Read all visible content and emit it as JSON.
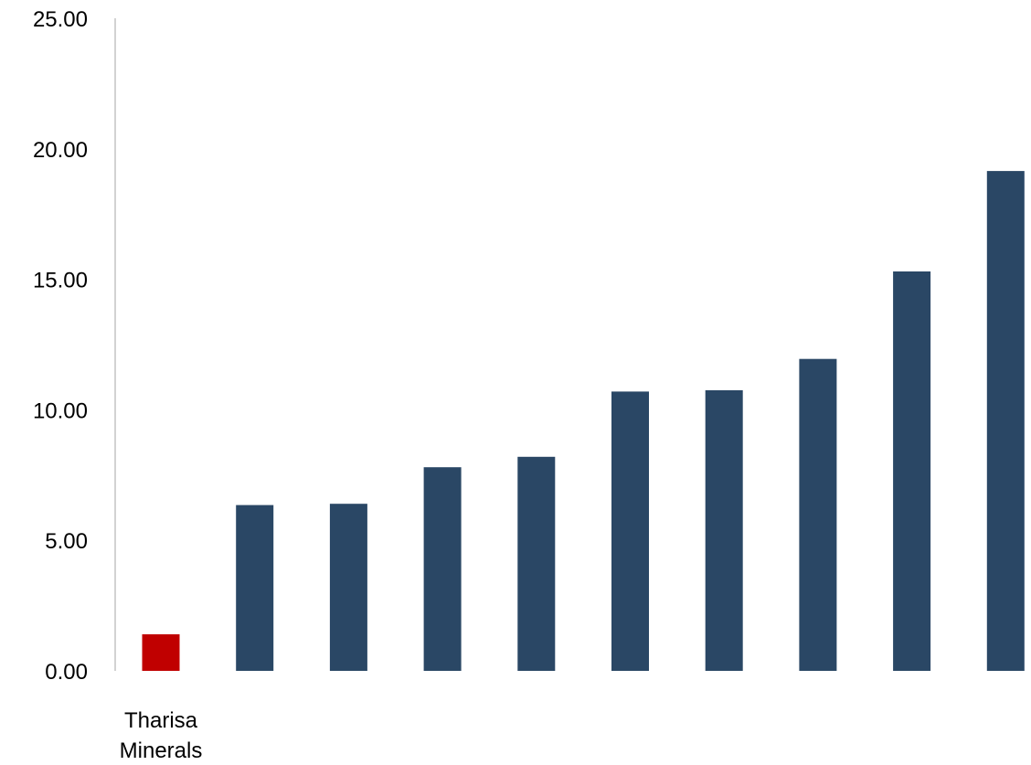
{
  "chart_data": {
    "type": "bar",
    "title": "",
    "xlabel": "",
    "ylabel": "",
    "ylim": [
      0,
      25
    ],
    "yticks": [
      "0.00",
      "5.00",
      "10.00",
      "15.00",
      "20.00",
      "25.00"
    ],
    "ytick_values": [
      0,
      5,
      10,
      15,
      20,
      25
    ],
    "grid": false,
    "legend": "none",
    "categories": [
      [
        "Tharisa",
        "Minerals"
      ],
      [],
      [],
      [],
      [],
      [],
      [],
      [],
      [],
      []
    ],
    "values": [
      1.4,
      6.35,
      6.4,
      7.8,
      8.2,
      10.7,
      10.75,
      11.95,
      15.3,
      19.15
    ],
    "bar_colors": [
      "#c00000",
      "#2a4765",
      "#2a4765",
      "#2a4765",
      "#2a4765",
      "#2a4765",
      "#2a4765",
      "#2a4765",
      "#2a4765",
      "#2a4765"
    ],
    "axis_color": "#a6a6a6"
  }
}
